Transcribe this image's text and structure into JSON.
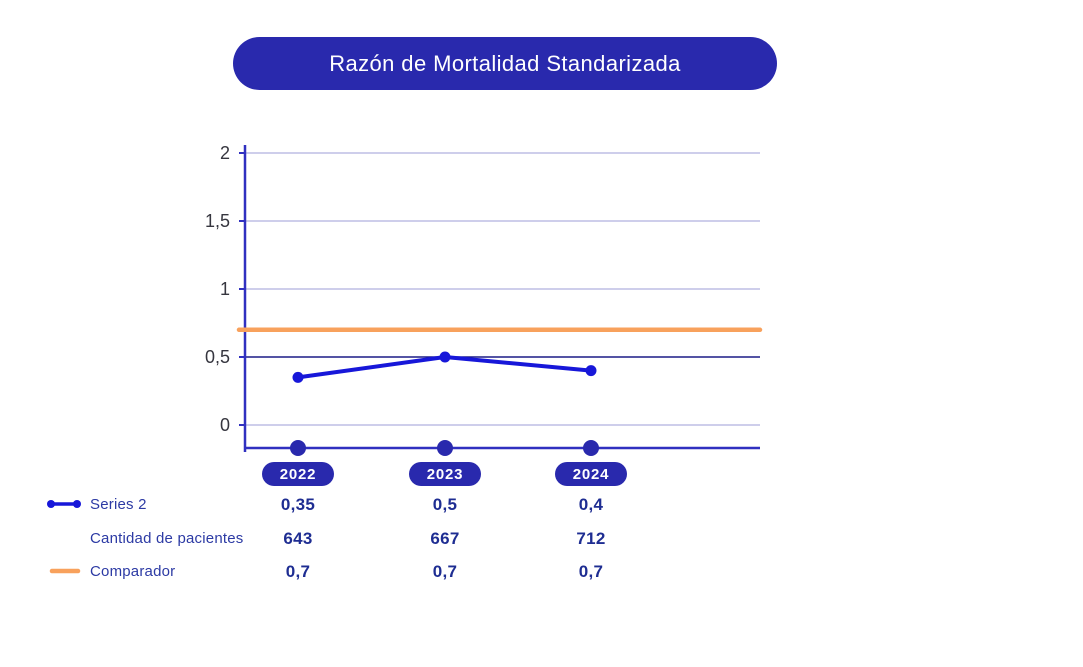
{
  "title": "Razón de Mortalidad Standarizada",
  "colors": {
    "primary_blue": "#2929ad",
    "line_blue": "#1717d9",
    "orange": "#f8a15c",
    "grid_light": "#b0b0df",
    "grid_dark": "#1c1c86",
    "axis_blue": "#3030c0",
    "tick_text": "#36363f",
    "label_navy": "#2c3aa4",
    "value_navy": "#1e2d92",
    "pill_text": "#ffffff"
  },
  "chart_data": {
    "type": "line",
    "title": "Razón de Mortalidad Standarizada",
    "categories": [
      "2022",
      "2023",
      "2024"
    ],
    "series": [
      {
        "name": "Series 2",
        "type": "line",
        "color": "#1717d9",
        "values": [
          0.35,
          0.5,
          0.4
        ],
        "display_values": [
          "0,35",
          "0,5",
          "0,4"
        ]
      },
      {
        "name": "Cantidad de pacientes",
        "type": "table-only",
        "values": [
          643,
          667,
          712
        ],
        "display_values": [
          "643",
          "667",
          "712"
        ]
      },
      {
        "name": "Comparador",
        "type": "reference-line",
        "color": "#f8a15c",
        "values": [
          0.7,
          0.7,
          0.7
        ],
        "display_values": [
          "0,7",
          "0,7",
          "0,7"
        ]
      }
    ],
    "xlabel": "",
    "ylabel": "",
    "ylim": [
      0,
      2
    ],
    "yticks": [
      2,
      1.5,
      1,
      0.5,
      0
    ],
    "ytick_labels": [
      "2",
      "1,5",
      "1",
      "0,5",
      "0"
    ],
    "emphasized_gridline": 0.5,
    "grid": true,
    "legend_position": "bottom-left",
    "decimal_separator": ","
  }
}
